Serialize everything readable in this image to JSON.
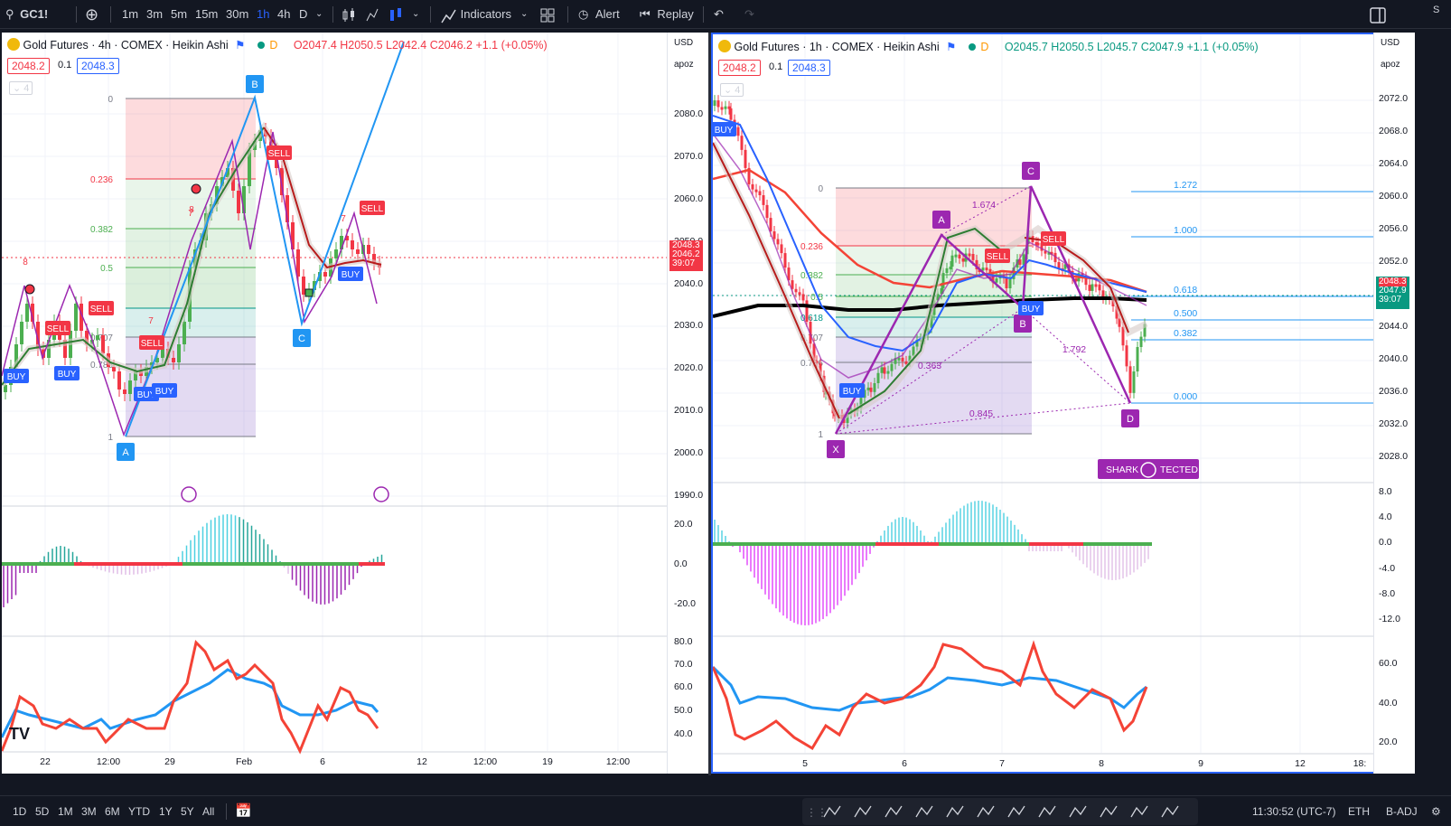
{
  "toolbar": {
    "symbol": "GC1!",
    "intervals": [
      "1m",
      "3m",
      "5m",
      "15m",
      "30m",
      "1h",
      "4h",
      "D"
    ],
    "active_interval": "1h",
    "indicators_label": "Indicators",
    "alert_label": "Alert",
    "replay_label": "Replay",
    "right_hint": "S"
  },
  "left_chart": {
    "title": "Gold Futures · 4h · COMEX · Heikin Ashi",
    "badge": "D",
    "ohlc": {
      "o": "O2047.4",
      "h": "H2050.5",
      "l": "L2042.4",
      "c": "C2046.2",
      "chg": "+1.1 (+0.05%)"
    },
    "bid": "2048.2",
    "spread": "0.1",
    "ask": "2048.3",
    "indicator_count": "4",
    "currency": "USD",
    "scale": "apoz",
    "price_axis": [
      "2080.0",
      "2070.0",
      "2060.0",
      "2050.0",
      "2040.0",
      "2030.0",
      "2020.0",
      "2010.0",
      "2000.0",
      "1990.0"
    ],
    "price_tags": [
      "2048.3",
      "2046.2",
      "39:07"
    ],
    "osc1_axis": [
      "20.0",
      "0.0",
      "-20.0"
    ],
    "osc2_axis": [
      "80.0",
      "70.0",
      "60.0",
      "50.0",
      "40.0"
    ],
    "time_axis": [
      "22",
      "12:00",
      "29",
      "Feb",
      "6",
      "12",
      "12:00",
      "19",
      "12:00"
    ],
    "fib_levels": [
      "0",
      "0.236",
      "0.382",
      "0.5",
      "0.618",
      "0.707",
      "0.786",
      "1"
    ],
    "points": [
      "A",
      "B",
      "C"
    ],
    "signals": [
      "SELL",
      "SELL",
      "SELL",
      "SELL",
      "BUY",
      "BUY",
      "BUY",
      "BUY",
      "BUY"
    ],
    "counts": [
      "8",
      "7",
      "8",
      "7",
      "7"
    ]
  },
  "right_chart": {
    "title": "Gold Futures · 1h · COMEX · Heikin Ashi",
    "badge": "D",
    "ohlc": {
      "o": "O2045.7",
      "h": "H2050.5",
      "l": "L2045.7",
      "c": "C2047.9",
      "chg": "+1.1 (+0.05%)"
    },
    "bid": "2048.2",
    "spread": "0.1",
    "ask": "2048.3",
    "indicator_count": "4",
    "currency": "USD",
    "scale": "apoz",
    "price_axis": [
      "2072.0",
      "2068.0",
      "2064.0",
      "2060.0",
      "2056.0",
      "2052.0",
      "2048.0",
      "2044.0",
      "2040.0",
      "2036.0",
      "2032.0",
      "2028.0"
    ],
    "price_tags": [
      "2048.3",
      "2047.9",
      "39:07"
    ],
    "osc1_axis": [
      "8.0",
      "4.0",
      "0.0",
      "-4.0",
      "-8.0",
      "-12.0"
    ],
    "osc2_axis": [
      "60.0",
      "40.0",
      "20.0"
    ],
    "time_axis": [
      "5",
      "6",
      "7",
      "8",
      "9",
      "12",
      "18:"
    ],
    "fib_levels": [
      "0",
      "0.236",
      "0.382",
      "0.5",
      "0.618",
      "0.707",
      "0.786",
      "1"
    ],
    "ext_levels": [
      "1.272",
      "1.000",
      "0.618",
      "0.500",
      "0.382",
      "0.000"
    ],
    "points": [
      "X",
      "A",
      "B",
      "C",
      "D"
    ],
    "ratios": [
      "1.674",
      "0.363",
      "1.792",
      "0.845"
    ],
    "signals": [
      "BUY",
      "BUY",
      "BUY",
      "SELL",
      "SELL"
    ],
    "pattern_label": "SHARK 1",
    "pattern_label_end": "TECTED"
  },
  "bottom": {
    "ranges": [
      "1D",
      "5D",
      "1M",
      "3M",
      "6M",
      "YTD",
      "1Y",
      "5Y",
      "All"
    ],
    "clock": "11:30:52 (UTC-7)",
    "session": "ETH",
    "adj": "B-ADJ"
  },
  "colors": {
    "up": "#089981",
    "down": "#f23645",
    "accent": "#2962ff",
    "pattern": "#9c27b0",
    "abc": "#2196f3"
  },
  "icons": [
    "search-icon",
    "plus-circle-icon",
    "candle-style-icon",
    "indicators-icon",
    "layout-icon",
    "alarm-icon",
    "replay-icon",
    "undo-icon",
    "redo-icon",
    "panel-icon",
    "tradingview-logo"
  ]
}
